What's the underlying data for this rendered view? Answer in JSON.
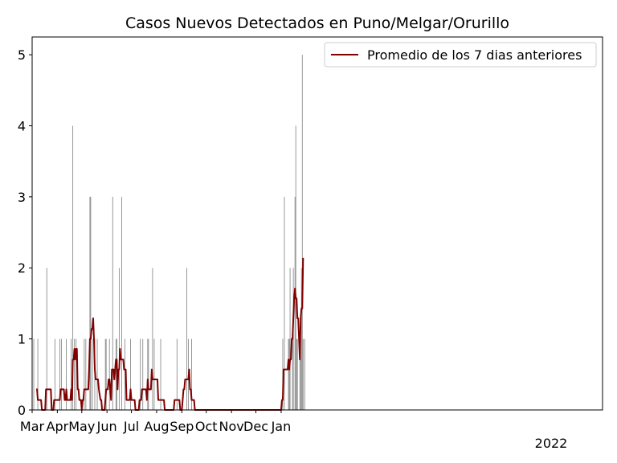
{
  "chart_data": {
    "type": "bar",
    "title": "Casos Nuevos Detectados en Puno/Melgar/Orurillo",
    "xlabel": "",
    "ylabel": "",
    "x_start": "2020-03-01",
    "x_end": "2022-01-31",
    "ylim": [
      0,
      5.25
    ],
    "yticks": [
      0,
      1,
      2,
      3,
      4,
      5
    ],
    "xticks": [
      {
        "date": "2020-03-01",
        "label": "Mar"
      },
      {
        "date": "2020-04-01",
        "label": "Apr"
      },
      {
        "date": "2020-05-01",
        "label": "May"
      },
      {
        "date": "2020-06-01",
        "label": "Jun"
      },
      {
        "date": "2020-07-01",
        "label": "Jul"
      },
      {
        "date": "2020-08-01",
        "label": "Aug"
      },
      {
        "date": "2020-09-01",
        "label": "Sep"
      },
      {
        "date": "2020-10-01",
        "label": "Oct"
      },
      {
        "date": "2020-11-01",
        "label": "Nov"
      },
      {
        "date": "2020-12-01",
        "label": "Dec"
      },
      {
        "date": "2021-01-01",
        "label": "Jan"
      }
    ],
    "year_label": "2022",
    "grid": false,
    "legend_position": "top-right",
    "bar_color": "#808080",
    "line_color": "#800000",
    "series": [
      {
        "type": "bar",
        "values": [
          [
            "2020-03-03",
            1
          ],
          [
            "2020-03-08",
            1
          ],
          [
            "2020-03-19",
            2
          ],
          [
            "2020-03-29",
            1
          ],
          [
            "2020-04-04",
            1
          ],
          [
            "2020-04-06",
            1
          ],
          [
            "2020-04-12",
            1
          ],
          [
            "2020-04-18",
            1
          ],
          [
            "2020-04-20",
            4
          ],
          [
            "2020-04-22",
            1
          ],
          [
            "2020-04-24",
            1
          ],
          [
            "2020-05-04",
            1
          ],
          [
            "2020-05-06",
            1
          ],
          [
            "2020-05-11",
            3
          ],
          [
            "2020-05-12",
            3
          ],
          [
            "2020-05-14",
            1
          ],
          [
            "2020-05-17",
            1
          ],
          [
            "2020-05-20",
            1
          ],
          [
            "2020-05-30",
            1
          ],
          [
            "2020-05-31",
            1
          ],
          [
            "2020-06-04",
            1
          ],
          [
            "2020-06-08",
            3
          ],
          [
            "2020-06-12",
            1
          ],
          [
            "2020-06-13",
            1
          ],
          [
            "2020-06-16",
            2
          ],
          [
            "2020-06-19",
            3
          ],
          [
            "2020-06-23",
            1
          ],
          [
            "2020-06-30",
            1
          ],
          [
            "2020-07-12",
            1
          ],
          [
            "2020-07-15",
            1
          ],
          [
            "2020-07-21",
            1
          ],
          [
            "2020-07-22",
            1
          ],
          [
            "2020-07-27",
            2
          ],
          [
            "2020-07-29",
            1
          ],
          [
            "2020-08-06",
            1
          ],
          [
            "2020-08-26",
            1
          ],
          [
            "2020-09-07",
            2
          ],
          [
            "2020-09-09",
            1
          ],
          [
            "2020-09-13",
            1
          ],
          [
            "2021-01-03",
            1
          ],
          [
            "2021-01-05",
            3
          ],
          [
            "2021-01-10",
            1
          ],
          [
            "2021-01-11",
            1
          ],
          [
            "2021-01-12",
            2
          ],
          [
            "2021-01-15",
            1
          ],
          [
            "2021-01-16",
            2
          ],
          [
            "2021-01-18",
            3
          ],
          [
            "2021-01-19",
            4
          ],
          [
            "2021-01-20",
            1
          ],
          [
            "2021-01-21",
            1
          ],
          [
            "2021-01-24",
            1
          ],
          [
            "2021-01-25",
            1
          ],
          [
            "2021-01-26",
            2
          ],
          [
            "2021-01-27",
            5
          ],
          [
            "2021-01-28",
            1
          ],
          [
            "2021-01-30",
            1
          ]
        ]
      },
      {
        "type": "line",
        "name": "Promedio de los 7 dias anteriores",
        "values": [
          [
            "2020-03-06",
            0.29
          ],
          [
            "2020-03-07",
            0.29
          ],
          [
            "2020-03-08",
            0.14
          ],
          [
            "2020-03-09",
            0.14
          ],
          [
            "2020-03-12",
            0.14
          ],
          [
            "2020-03-13",
            0.0
          ],
          [
            "2020-03-16",
            0.0
          ],
          [
            "2020-03-17",
            0.0
          ],
          [
            "2020-03-18",
            0.29
          ],
          [
            "2020-03-24",
            0.29
          ],
          [
            "2020-03-25",
            0.0
          ],
          [
            "2020-03-27",
            0.0
          ],
          [
            "2020-03-28",
            0.14
          ],
          [
            "2020-04-04",
            0.14
          ],
          [
            "2020-04-05",
            0.29
          ],
          [
            "2020-04-09",
            0.29
          ],
          [
            "2020-04-10",
            0.14
          ],
          [
            "2020-04-11",
            0.14
          ],
          [
            "2020-04-12",
            0.29
          ],
          [
            "2020-04-13",
            0.14
          ],
          [
            "2020-04-17",
            0.14
          ],
          [
            "2020-04-18",
            0.29
          ],
          [
            "2020-04-19",
            0.14
          ],
          [
            "2020-04-20",
            0.71
          ],
          [
            "2020-04-21",
            0.71
          ],
          [
            "2020-04-22",
            0.86
          ],
          [
            "2020-04-23",
            0.71
          ],
          [
            "2020-04-24",
            0.86
          ],
          [
            "2020-04-25",
            0.86
          ],
          [
            "2020-04-26",
            0.29
          ],
          [
            "2020-04-27",
            0.29
          ],
          [
            "2020-04-28",
            0.14
          ],
          [
            "2020-04-30",
            0.14
          ],
          [
            "2020-05-01",
            0.0
          ],
          [
            "2020-05-02",
            0.14
          ],
          [
            "2020-05-03",
            0.14
          ],
          [
            "2020-05-04",
            0.29
          ],
          [
            "2020-05-09",
            0.29
          ],
          [
            "2020-05-10",
            0.57
          ],
          [
            "2020-05-11",
            1.0
          ],
          [
            "2020-05-12",
            1.0
          ],
          [
            "2020-05-13",
            1.14
          ],
          [
            "2020-05-14",
            1.14
          ],
          [
            "2020-05-15",
            1.29
          ],
          [
            "2020-05-16",
            1.0
          ],
          [
            "2020-05-17",
            0.57
          ],
          [
            "2020-05-18",
            0.43
          ],
          [
            "2020-05-19",
            0.43
          ],
          [
            "2020-05-20",
            0.43
          ],
          [
            "2020-05-21",
            0.43
          ],
          [
            "2020-05-22",
            0.29
          ],
          [
            "2020-05-24",
            0.14
          ],
          [
            "2020-05-25",
            0.14
          ],
          [
            "2020-05-26",
            0.0
          ],
          [
            "2020-05-29",
            0.0
          ],
          [
            "2020-05-30",
            0.14
          ],
          [
            "2020-05-31",
            0.29
          ],
          [
            "2020-06-01",
            0.29
          ],
          [
            "2020-06-02",
            0.29
          ],
          [
            "2020-06-03",
            0.43
          ],
          [
            "2020-06-04",
            0.43
          ],
          [
            "2020-06-05",
            0.29
          ],
          [
            "2020-06-06",
            0.14
          ],
          [
            "2020-06-07",
            0.57
          ],
          [
            "2020-06-09",
            0.57
          ],
          [
            "2020-06-10",
            0.43
          ],
          [
            "2020-06-11",
            0.57
          ],
          [
            "2020-06-12",
            0.71
          ],
          [
            "2020-06-13",
            0.71
          ],
          [
            "2020-06-14",
            0.29
          ],
          [
            "2020-06-15",
            0.57
          ],
          [
            "2020-06-16",
            0.57
          ],
          [
            "2020-06-17",
            0.86
          ],
          [
            "2020-06-18",
            0.71
          ],
          [
            "2020-06-21",
            0.71
          ],
          [
            "2020-06-22",
            0.57
          ],
          [
            "2020-06-24",
            0.57
          ],
          [
            "2020-06-25",
            0.14
          ],
          [
            "2020-06-29",
            0.14
          ],
          [
            "2020-06-30",
            0.29
          ],
          [
            "2020-07-01",
            0.14
          ],
          [
            "2020-07-05",
            0.14
          ],
          [
            "2020-07-06",
            0.0
          ],
          [
            "2020-07-10",
            0.0
          ],
          [
            "2020-07-11",
            0.14
          ],
          [
            "2020-07-13",
            0.14
          ],
          [
            "2020-07-14",
            0.29
          ],
          [
            "2020-07-19",
            0.29
          ],
          [
            "2020-07-20",
            0.14
          ],
          [
            "2020-07-21",
            0.43
          ],
          [
            "2020-07-22",
            0.29
          ],
          [
            "2020-07-25",
            0.29
          ],
          [
            "2020-07-26",
            0.57
          ],
          [
            "2020-07-27",
            0.43
          ],
          [
            "2020-08-02",
            0.43
          ],
          [
            "2020-08-03",
            0.14
          ],
          [
            "2020-08-10",
            0.14
          ],
          [
            "2020-08-11",
            0.0
          ],
          [
            "2020-08-22",
            0.0
          ],
          [
            "2020-08-23",
            0.14
          ],
          [
            "2020-08-29",
            0.14
          ],
          [
            "2020-08-30",
            0.0
          ],
          [
            "2020-09-01",
            0.0
          ],
          [
            "2020-09-02",
            0.14
          ],
          [
            "2020-09-03",
            0.29
          ],
          [
            "2020-09-04",
            0.29
          ],
          [
            "2020-09-05",
            0.43
          ],
          [
            "2020-09-09",
            0.43
          ],
          [
            "2020-09-10",
            0.57
          ],
          [
            "2020-09-11",
            0.29
          ],
          [
            "2020-09-12",
            0.29
          ],
          [
            "2020-09-13",
            0.14
          ],
          [
            "2020-09-16",
            0.14
          ],
          [
            "2020-09-17",
            0.0
          ],
          [
            "2020-12-31",
            0.0
          ],
          [
            "2021-01-01",
            0.0
          ],
          [
            "2021-01-02",
            0.14
          ],
          [
            "2021-01-03",
            0.14
          ],
          [
            "2021-01-04",
            0.57
          ],
          [
            "2021-01-09",
            0.57
          ],
          [
            "2021-01-10",
            0.71
          ],
          [
            "2021-01-11",
            0.57
          ],
          [
            "2021-01-12",
            0.71
          ],
          [
            "2021-01-13",
            0.71
          ],
          [
            "2021-01-14",
            1.0
          ],
          [
            "2021-01-15",
            1.0
          ],
          [
            "2021-01-16",
            1.29
          ],
          [
            "2021-01-17",
            1.57
          ],
          [
            "2021-01-18",
            1.71
          ],
          [
            "2021-01-19",
            1.57
          ],
          [
            "2021-01-20",
            1.57
          ],
          [
            "2021-01-21",
            1.29
          ],
          [
            "2021-01-22",
            1.29
          ],
          [
            "2021-01-23",
            1.0
          ],
          [
            "2021-01-24",
            0.71
          ],
          [
            "2021-01-25",
            1.29
          ],
          [
            "2021-01-26",
            1.43
          ],
          [
            "2021-01-27",
            1.43
          ],
          [
            "2021-01-28",
            2.14
          ]
        ]
      }
    ]
  }
}
